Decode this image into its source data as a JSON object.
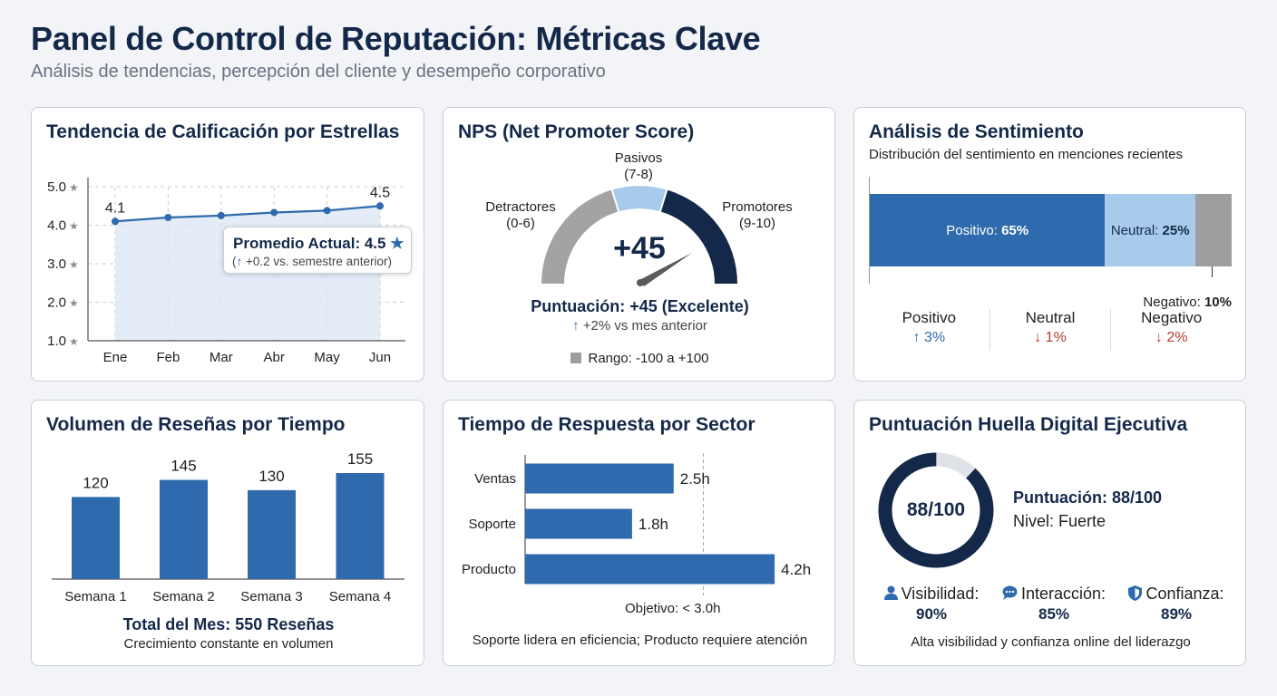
{
  "header": {
    "title": "Panel de Control de Reputación: Métricas Clave",
    "subtitle": "Análisis de tendencias, percepción del cliente y desempeño corporativo"
  },
  "colors": {
    "navy": "#14294a",
    "blue": "#2e6aad",
    "light_blue": "#a9cbeb",
    "gray": "#9e9e9e",
    "up": "#2e6aad",
    "down": "#b03a2e"
  },
  "star_trend": {
    "title": "Tendencia de Calificación por Estrellas",
    "y_ticks": [
      "5.0",
      "4.0",
      "3.0",
      "2.0",
      "1.0"
    ],
    "star_icon": "star-icon",
    "first_label": "4.1",
    "last_label": "4.5",
    "tooltip_title": "Promedio Actual: 4.5",
    "tooltip_arrow": "↑",
    "tooltip_sub": "+0.2 vs. semestre anterior"
  },
  "nps": {
    "title": "NPS (Net Promoter Score)",
    "passives_label": "Pasivos",
    "passives_range": "(7-8)",
    "detractors_label": "Detractores",
    "detractors_range": "(0-6)",
    "promoters_label": "Promotores",
    "promoters_range": "(9-10)",
    "value": "+45",
    "score_text": "Puntuación: +45 (Excelente)",
    "change_arrow": "↑",
    "change_text": "+2% vs mes anterior",
    "range_text": "Rango: -100 a +100",
    "score_numeric": 45,
    "range_min": -100,
    "range_max": 100
  },
  "sentiment": {
    "title": "Análisis de Sentimiento",
    "subtitle": "Distribución del sentimiento en menciones recientes",
    "positive_label": "Positivo: ",
    "positive_value": "65%",
    "neutral_label": "Neutral: ",
    "neutral_value": "25%",
    "negative_label": "Negativo: ",
    "negative_value": "10%",
    "shares": [
      65,
      25,
      10
    ],
    "stats": [
      {
        "label": "Positivo",
        "arrow": "↑",
        "value": "3%"
      },
      {
        "label": "Neutral",
        "arrow": "↓",
        "value": "1%"
      },
      {
        "label": "Negativo",
        "arrow": "↓",
        "value": "2%"
      }
    ]
  },
  "volume": {
    "title": "Volumen de Reseñas por Tiempo",
    "total": "Total del Mes: 550 Reseñas",
    "note": "Crecimiento constante en volumen"
  },
  "response": {
    "title": "Tiempo de Respuesta por Sector",
    "objective_label": "Objetivo: < 3.0h",
    "objective_value": 3.0,
    "note": "Soporte lidera en eficiencia; Producto requiere atención"
  },
  "footprint": {
    "title": "Puntuación Huella Digital Ejecutiva",
    "donut_label": "88/100",
    "score": 88,
    "max": 100,
    "score_text": "Puntuación: 88/100",
    "level_text": "Nivel: Fuerte",
    "metrics": [
      {
        "icon": "person-icon",
        "label": "Visibilidad:",
        "value": "90%"
      },
      {
        "icon": "chat-bubble-icon",
        "label": "Interacción:",
        "value": "85%"
      },
      {
        "icon": "shield-icon",
        "label": "Confianza:",
        "value": "89%"
      }
    ],
    "note": "Alta visibilidad y confianza online del liderazgo"
  },
  "chart_data": [
    {
      "type": "line",
      "title": "Tendencia de Calificación por Estrellas",
      "categories": [
        "Ene",
        "Feb",
        "Mar",
        "Abr",
        "May",
        "Jun"
      ],
      "values": [
        4.1,
        4.2,
        4.25,
        4.33,
        4.38,
        4.5
      ],
      "ylim": [
        1.0,
        5.0
      ],
      "grid": true
    },
    {
      "type": "bar",
      "title": "Volumen de Reseñas por Tiempo",
      "categories": [
        "Semana 1",
        "Semana 2",
        "Semana 3",
        "Semana 4"
      ],
      "values": [
        120,
        145,
        130,
        155
      ],
      "labels": [
        "120",
        "145",
        "130",
        "155"
      ]
    },
    {
      "type": "bar",
      "orientation": "horizontal",
      "title": "Tiempo de Respuesta por Sector",
      "categories": [
        "Ventas",
        "Soporte",
        "Producto"
      ],
      "values": [
        2.5,
        1.8,
        4.2
      ],
      "labels": [
        "2.5h",
        "1.8h",
        "4.2h"
      ]
    }
  ]
}
